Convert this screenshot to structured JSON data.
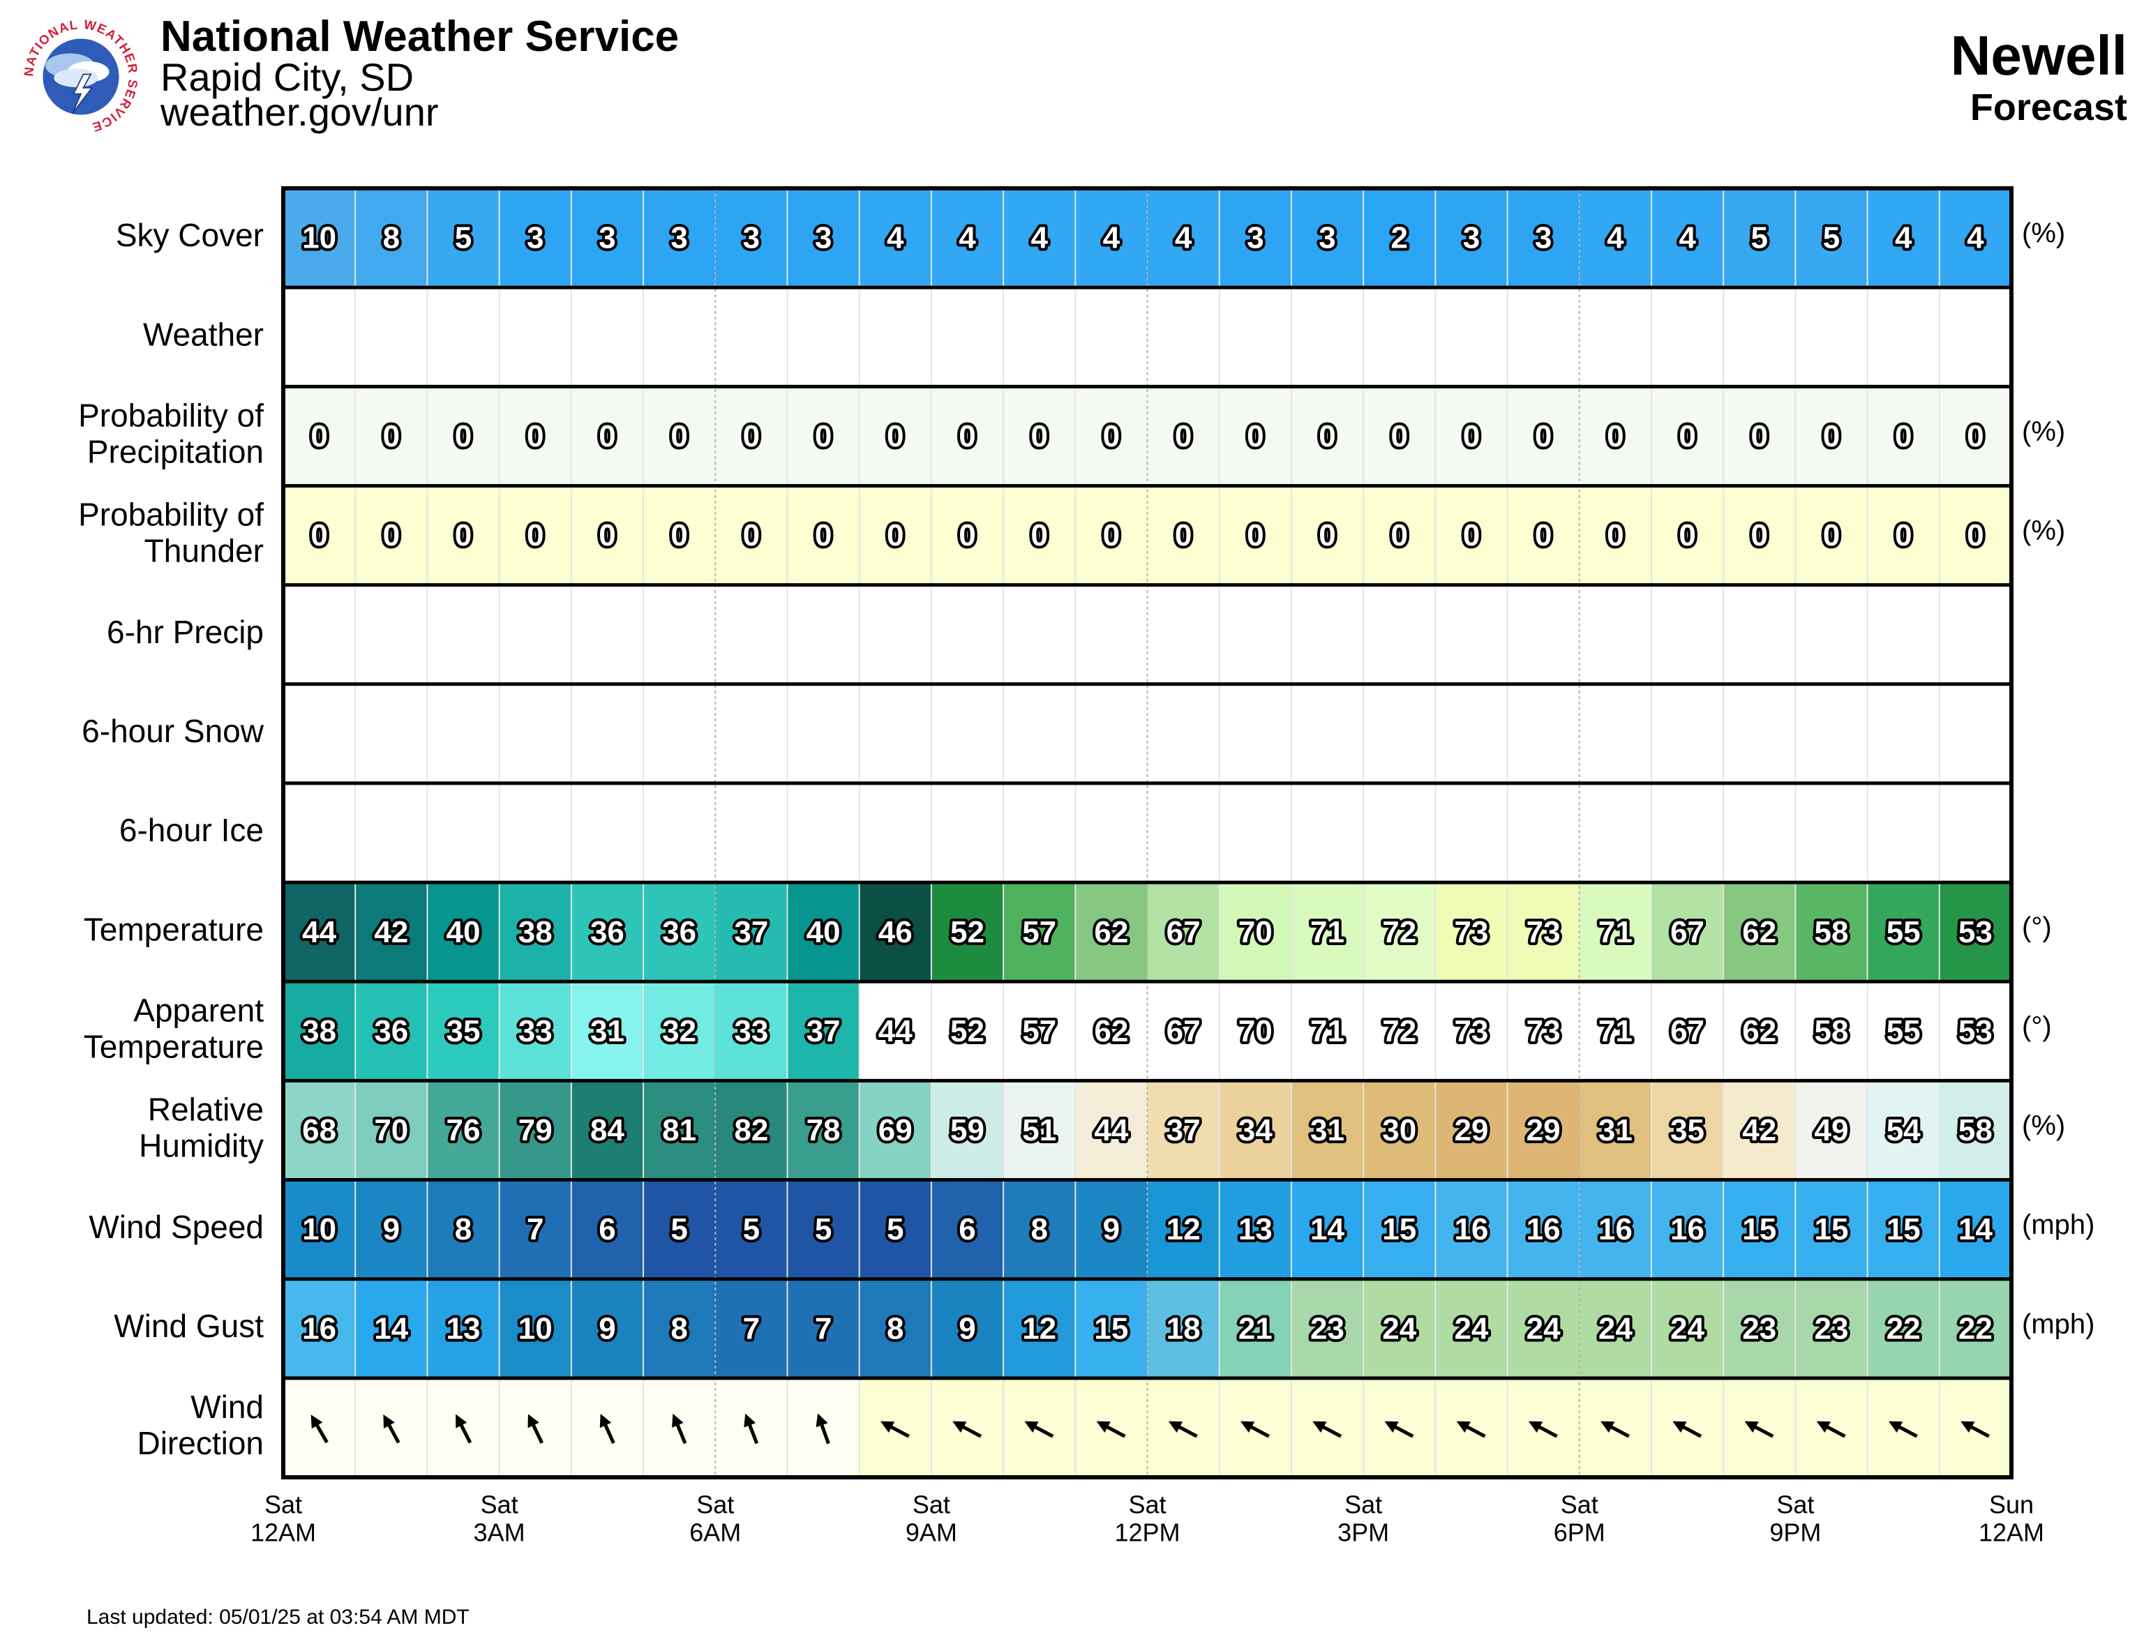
{
  "header": {
    "office_name": "National Weather Service",
    "office_location": "Rapid City, SD",
    "office_url": "weather.gov/unr",
    "location_title": "Newell",
    "location_subtitle": "Forecast",
    "logo_icon": "nws-logo-icon",
    "logo_text": "NATIONAL WEATHER SERVICE"
  },
  "footer": {
    "last_updated": "Last updated: 05/01/25 at 03:54 AM MDT"
  },
  "chart_data": {
    "type": "table",
    "x_ticks": [
      {
        "day": "Sat",
        "time": "12AM"
      },
      {
        "day": "Sat",
        "time": "3AM"
      },
      {
        "day": "Sat",
        "time": "6AM"
      },
      {
        "day": "Sat",
        "time": "9AM"
      },
      {
        "day": "Sat",
        "time": "12PM"
      },
      {
        "day": "Sat",
        "time": "3PM"
      },
      {
        "day": "Sat",
        "time": "6PM"
      },
      {
        "day": "Sat",
        "time": "9PM"
      },
      {
        "day": "Sun",
        "time": "12AM"
      }
    ],
    "rows": [
      {
        "key": "sky-cover",
        "label": [
          "Sky Cover"
        ],
        "unit": "(%)",
        "scale": "sky",
        "values": [
          10,
          8,
          5,
          3,
          3,
          3,
          3,
          3,
          4,
          4,
          4,
          4,
          4,
          3,
          3,
          2,
          3,
          3,
          4,
          4,
          5,
          5,
          4,
          4
        ]
      },
      {
        "key": "weather",
        "label": [
          "Weather"
        ],
        "unit": "",
        "scale": "blank",
        "values": []
      },
      {
        "key": "pop",
        "label": [
          "Probability of",
          "Precipitation"
        ],
        "unit": "(%)",
        "scale": "pop",
        "values": [
          0,
          0,
          0,
          0,
          0,
          0,
          0,
          0,
          0,
          0,
          0,
          0,
          0,
          0,
          0,
          0,
          0,
          0,
          0,
          0,
          0,
          0,
          0,
          0
        ]
      },
      {
        "key": "thunder",
        "label": [
          "Probability of",
          "Thunder"
        ],
        "unit": "(%)",
        "scale": "thunder",
        "values": [
          0,
          0,
          0,
          0,
          0,
          0,
          0,
          0,
          0,
          0,
          0,
          0,
          0,
          0,
          0,
          0,
          0,
          0,
          0,
          0,
          0,
          0,
          0,
          0
        ]
      },
      {
        "key": "precip-6hr",
        "label": [
          "6-hr Precip"
        ],
        "unit": "",
        "scale": "blank",
        "values": []
      },
      {
        "key": "snow-6hr",
        "label": [
          "6-hour Snow"
        ],
        "unit": "",
        "scale": "blank",
        "values": []
      },
      {
        "key": "ice-6hr",
        "label": [
          "6-hour Ice"
        ],
        "unit": "",
        "scale": "blank",
        "values": []
      },
      {
        "key": "temperature",
        "label": [
          "Temperature"
        ],
        "unit": "(°)",
        "scale": "temp",
        "values": [
          44,
          42,
          40,
          38,
          36,
          36,
          37,
          40,
          46,
          52,
          57,
          62,
          67,
          70,
          71,
          72,
          73,
          73,
          71,
          67,
          62,
          58,
          55,
          53
        ]
      },
      {
        "key": "apparent-temperature",
        "label": [
          "Apparent",
          "Temperature"
        ],
        "unit": "(°)",
        "scale": "apparent",
        "values": [
          38,
          36,
          35,
          33,
          31,
          32,
          33,
          37,
          44,
          52,
          57,
          62,
          67,
          70,
          71,
          72,
          73,
          73,
          71,
          67,
          62,
          58,
          55,
          53
        ]
      },
      {
        "key": "relative-humidity",
        "label": [
          "Relative",
          "Humidity"
        ],
        "unit": "(%)",
        "scale": "rh",
        "values": [
          68,
          70,
          76,
          79,
          84,
          81,
          82,
          78,
          69,
          59,
          51,
          44,
          37,
          34,
          31,
          30,
          29,
          29,
          31,
          35,
          42,
          49,
          54,
          58
        ]
      },
      {
        "key": "wind-speed",
        "label": [
          "Wind Speed"
        ],
        "unit": "(mph)",
        "scale": "wind",
        "values": [
          10,
          9,
          8,
          7,
          6,
          5,
          5,
          5,
          5,
          6,
          8,
          9,
          12,
          13,
          14,
          15,
          16,
          16,
          16,
          16,
          15,
          15,
          15,
          14
        ]
      },
      {
        "key": "wind-gust",
        "label": [
          "Wind Gust"
        ],
        "unit": "(mph)",
        "scale": "gust",
        "values": [
          16,
          14,
          13,
          10,
          9,
          8,
          7,
          7,
          8,
          9,
          12,
          15,
          18,
          21,
          23,
          24,
          24,
          24,
          24,
          24,
          23,
          23,
          22,
          22
        ]
      },
      {
        "key": "wind-direction",
        "label": [
          "Wind",
          "Direction"
        ],
        "unit": "",
        "scale": "direction",
        "values": []
      }
    ]
  }
}
